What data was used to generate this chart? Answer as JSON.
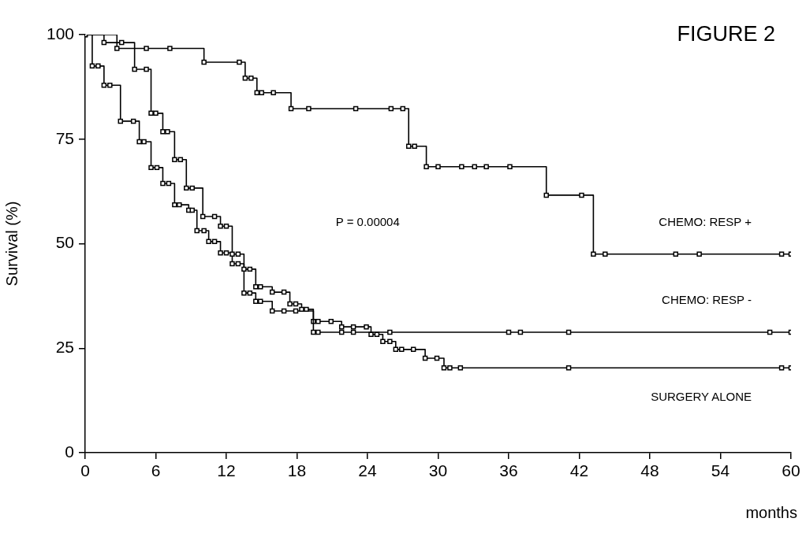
{
  "chart_data": {
    "type": "step",
    "title": "FIGURE 2",
    "xlabel": "months",
    "ylabel": "Survival (%)",
    "xlim": [
      0,
      60
    ],
    "xticks": [
      0,
      6,
      12,
      18,
      24,
      30,
      36,
      42,
      48,
      54,
      60
    ],
    "ylim": [
      0,
      100
    ],
    "yticks": [
      0,
      25,
      50,
      75,
      100
    ],
    "grid": false,
    "legend": false,
    "marker": "square",
    "line_style": "solid",
    "annotations": [
      "P = 0.00004"
    ],
    "series": [
      {
        "name": "CHEMO: RESP +",
        "color": "#000000",
        "x": [
          0,
          2.7,
          5.2,
          7.2,
          10.1,
          13.1,
          13.6,
          14.1,
          14.6,
          15.0,
          16.0,
          17.5,
          19.0,
          23.0,
          26.0,
          27.0,
          27.5,
          28.0,
          29.0,
          30.0,
          32.0,
          33.1,
          34.1,
          36.1,
          39.2,
          42.2,
          43.2,
          44.2,
          50.2,
          52.2,
          59.2,
          60
        ],
        "values": [
          100,
          96.7,
          96.7,
          96.7,
          93.4,
          93.4,
          89.6,
          89.6,
          86.1,
          86.1,
          86.1,
          82.3,
          82.3,
          82.3,
          82.3,
          82.3,
          73.3,
          73.3,
          68.4,
          68.4,
          68.4,
          68.4,
          68.4,
          68.4,
          61.6,
          61.6,
          47.5,
          47.5,
          47.5,
          47.5,
          47.5,
          47.5
        ]
      },
      {
        "name": "CHEMO: RESP -",
        "color": "#000000",
        "x": [
          0,
          1.6,
          3.1,
          4.2,
          5.2,
          5.6,
          6.0,
          6.6,
          7.0,
          7.6,
          8.1,
          8.6,
          9.1,
          10.0,
          11.0,
          11.5,
          12.0,
          12.5,
          13.0,
          13.5,
          14.0,
          14.5,
          14.9,
          15.9,
          16.9,
          17.4,
          17.9,
          18.4,
          18.8,
          19.4,
          19.8,
          21.8,
          22.8,
          25.9,
          36.0,
          37.0,
          41.1,
          58.2,
          60
        ],
        "values": [
          100,
          98.1,
          98.1,
          91.7,
          91.7,
          81.2,
          81.2,
          76.8,
          76.8,
          70.1,
          70.1,
          63.3,
          63.3,
          56.5,
          56.5,
          54.2,
          54.2,
          47.5,
          47.5,
          43.9,
          43.9,
          39.7,
          39.7,
          38.4,
          38.4,
          35.6,
          35.6,
          34.3,
          34.3,
          28.8,
          28.8,
          28.8,
          28.8,
          28.8,
          28.8,
          28.8,
          28.8,
          28.8,
          28.8
        ]
      },
      {
        "name": "SURGERY ALONE",
        "color": "#000000",
        "x": [
          0,
          0.6,
          1.1,
          1.6,
          2.1,
          3.0,
          4.1,
          4.6,
          5.0,
          5.6,
          6.1,
          6.6,
          7.1,
          7.6,
          8.0,
          8.8,
          9.1,
          9.5,
          10.1,
          10.5,
          11.0,
          11.5,
          12.0,
          12.5,
          13.0,
          13.5,
          14.0,
          14.5,
          14.9,
          15.9,
          16.9,
          17.9,
          19.4,
          19.8,
          20.9,
          21.8,
          22.8,
          23.9,
          24.3,
          24.8,
          25.3,
          25.9,
          26.4,
          26.9,
          27.9,
          28.9,
          29.9,
          30.5,
          31.0,
          31.9,
          41.1,
          59.2,
          60
        ],
        "values": [
          100,
          92.5,
          92.5,
          87.9,
          87.9,
          79.3,
          79.3,
          74.4,
          74.4,
          68.2,
          68.2,
          64.4,
          64.4,
          59.3,
          59.3,
          58.0,
          58.0,
          53.1,
          53.1,
          50.5,
          50.5,
          47.8,
          47.8,
          45.2,
          45.2,
          38.2,
          38.2,
          36.2,
          36.2,
          33.9,
          33.9,
          33.9,
          31.4,
          31.4,
          31.4,
          30.1,
          30.1,
          30.1,
          28.3,
          28.3,
          26.6,
          26.6,
          24.7,
          24.7,
          24.7,
          22.6,
          22.6,
          20.3,
          20.3,
          20.3,
          20.3,
          20.3,
          20.3
        ]
      }
    ]
  }
}
